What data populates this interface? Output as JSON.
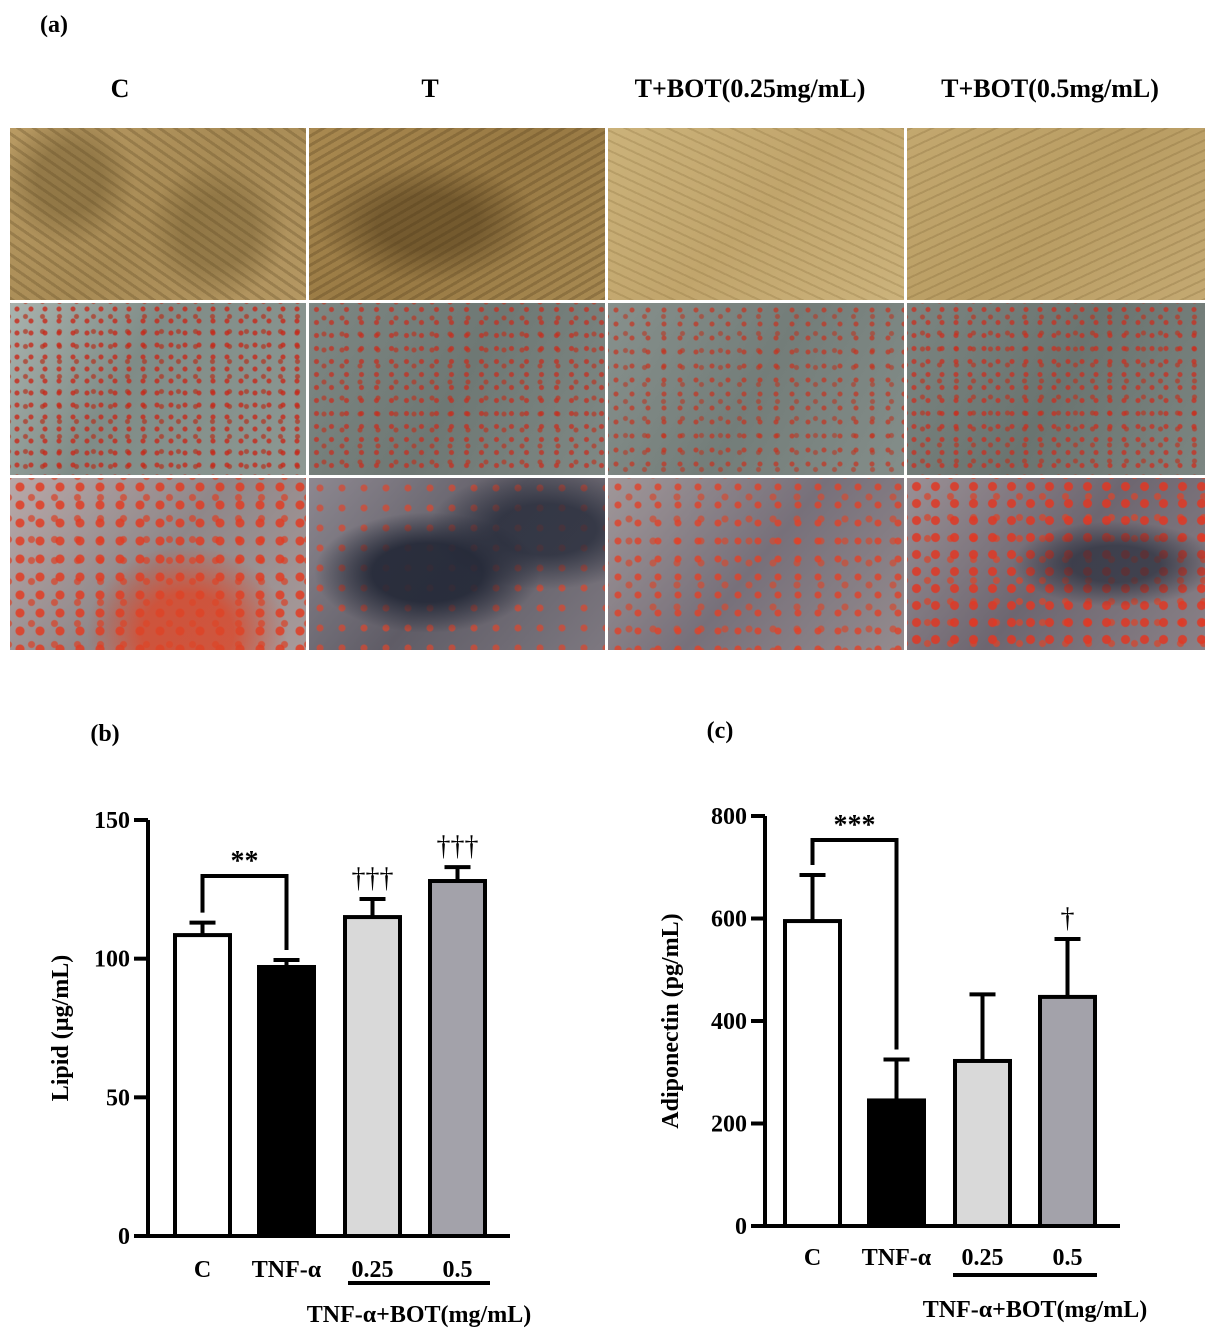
{
  "panel_a": {
    "letter": "(a)",
    "columns": [
      "C",
      "T",
      "T+BOT(0.25mg/mL)",
      "T+BOT(0.5mg/mL)"
    ]
  },
  "chart_data": [
    {
      "type": "bar",
      "panel_letter": "(b)",
      "ylabel": "Lipid (µg/mL)",
      "ylim": [
        0,
        150
      ],
      "yticks": [
        0,
        50,
        100,
        150
      ],
      "categories": [
        "C",
        "TNF-α",
        "0.25",
        "0.5"
      ],
      "group_label": "TNF-α+BOT(mg/mL)",
      "values": [
        108.5,
        97,
        115,
        128
      ],
      "errors": [
        4.5,
        2.5,
        6.5,
        5
      ],
      "bar_colors": [
        "#ffffff",
        "#000000",
        "#d9d9d9",
        "#a3a2aa"
      ],
      "bracket": {
        "from": 0,
        "to": 1,
        "label": "**"
      },
      "annotations": [
        {
          "index": 2,
          "label": "†††"
        },
        {
          "index": 3,
          "label": "†††"
        }
      ]
    },
    {
      "type": "bar",
      "panel_letter": "(c)",
      "ylabel": "Adiponectin (pg/mL)",
      "ylim": [
        0,
        800
      ],
      "yticks": [
        0,
        200,
        400,
        600,
        800
      ],
      "categories": [
        "C",
        "TNF-α",
        "0.25",
        "0.5"
      ],
      "group_label": "TNF-α+BOT(mg/mL)",
      "values": [
        595,
        245,
        322,
        447
      ],
      "errors": [
        90,
        80,
        130,
        113
      ],
      "bar_colors": [
        "#ffffff",
        "#000000",
        "#d9d9d9",
        "#a3a2aa"
      ],
      "bracket": {
        "from": 0,
        "to": 1,
        "label": "***"
      },
      "annotations": [
        {
          "index": 3,
          "label": "†"
        }
      ]
    }
  ]
}
